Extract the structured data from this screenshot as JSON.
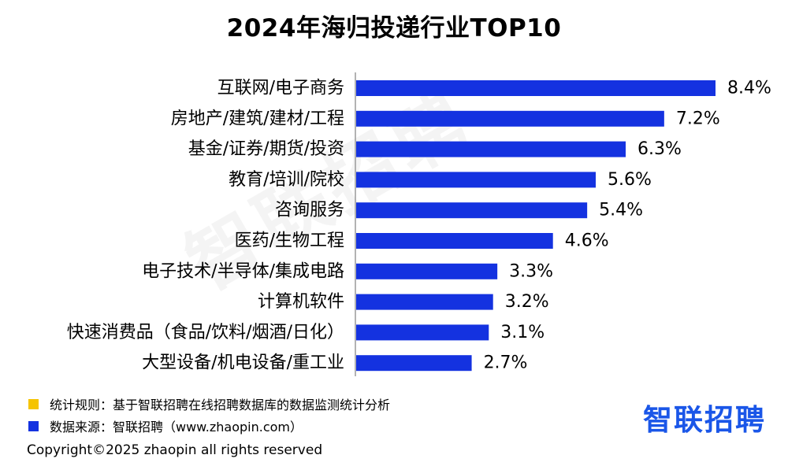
{
  "colors": {
    "bar": "#1432e0",
    "rule_square": "#f5c400",
    "source_square": "#1432e0",
    "brand": "#1a56e8"
  },
  "watermark": "智联招聘",
  "footer": {
    "rule": "统计规则：基于智联招聘在线招聘数据库的数据监测统计分析",
    "source": "数据来源：智联招聘（www.zhaopin.com）",
    "copyright": "Copyright©2025 zhaopin all rights reserved",
    "brand": "智联招聘"
  },
  "chart_data": {
    "type": "bar",
    "orientation": "horizontal",
    "title": "2024年海归投递行业TOP10",
    "categories": [
      "互联网/电子商务",
      "房地产/建筑/建材/工程",
      "基金/证券/期货/投资",
      "教育/培训/院校",
      "咨询服务",
      "医药/生物工程",
      "电子技术/半导体/集成电路",
      "计算机软件",
      "快速消费品（食品/饮料/烟酒/日化）",
      "大型设备/机电设备/重工业"
    ],
    "values": [
      8.4,
      7.2,
      6.3,
      5.6,
      5.4,
      4.6,
      3.3,
      3.2,
      3.1,
      2.7
    ],
    "value_labels": [
      "8.4%",
      "7.2%",
      "6.3%",
      "5.6%",
      "5.4%",
      "4.6%",
      "3.3%",
      "3.2%",
      "3.1%",
      "2.7%"
    ],
    "xlim": [
      0,
      8.4
    ],
    "grid": false,
    "legend": "none"
  }
}
